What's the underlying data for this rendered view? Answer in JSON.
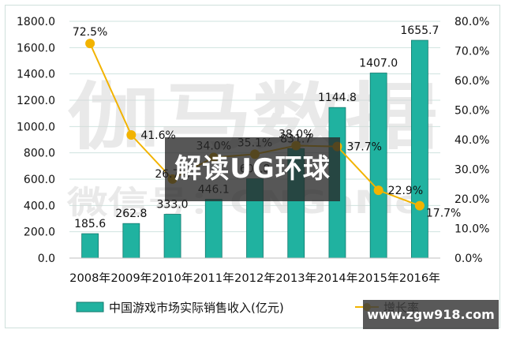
{
  "chart_data": {
    "type": "bar",
    "title": "",
    "categories": [
      "2008年",
      "2009年",
      "2010年",
      "2011年",
      "2012年",
      "2013年",
      "2014年",
      "2015年",
      "2016年"
    ],
    "series": [
      {
        "name": "中国游戏市场实际销售收入(亿元)",
        "type": "bar",
        "axis": "left",
        "values": [
          185.6,
          262.8,
          333.0,
          446.1,
          602.8,
          831.7,
          1144.8,
          1407.0,
          1655.7
        ],
        "labels": [
          "185.6",
          "262.8",
          "333.0",
          "446.1",
          "60?.8",
          "831.7",
          "1144.8",
          "1407.0",
          "1655.7"
        ],
        "color": "#20b2a0"
      },
      {
        "name": "增长率",
        "type": "line",
        "axis": "right",
        "values": [
          72.5,
          41.6,
          26.7,
          34.0,
          35.1,
          38.0,
          37.7,
          22.9,
          17.7
        ],
        "labels": [
          "72.5%",
          "41.6%",
          "26.7%",
          "34.0%",
          "35.1%",
          "38.0%",
          "37.7%",
          "22.9%",
          "17.7%"
        ],
        "color": "#f2b300"
      }
    ],
    "y_left": {
      "ticks": [
        "0.0",
        "200.0",
        "400.0",
        "600.0",
        "800.0",
        "1000.0",
        "1200.0",
        "1400.0",
        "1600.0",
        "1800.0"
      ],
      "ylim": [
        0,
        1800
      ]
    },
    "y_right": {
      "ticks": [
        "0.0%",
        "10.0%",
        "20.0%",
        "30.0%",
        "40.0%",
        "50.0%",
        "60.0%",
        "70.0%",
        "80.0%"
      ],
      "ylim": [
        0,
        80
      ]
    },
    "xlabel": "",
    "ylabel": "",
    "grid": true,
    "legend_position": "bottom"
  },
  "legend": {
    "bar_label": "中国游戏市场实际销售收入(亿元)",
    "line_label": "增长率"
  },
  "watermark": {
    "main": "伽马数据",
    "sub": "微信号：CNGaMe"
  },
  "overlay": {
    "title": "解读UG环球",
    "site": "www.zgw918.com"
  }
}
